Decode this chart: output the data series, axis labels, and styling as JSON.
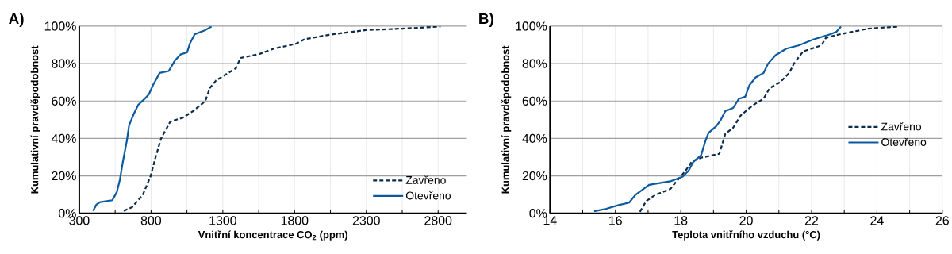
{
  "chart_data": [
    {
      "type": "line",
      "title": "A)",
      "xlabel": "Vnitřní koncentrace CO$_{2}$ (ppm)",
      "ylabel": "Kumulativní pravděpodobnost",
      "xlim": [
        300,
        3000
      ],
      "ylim": [
        0,
        100
      ],
      "xticks": [
        300,
        {
          "value": 550,
          "label": null
        },
        800,
        {
          "value": 1050,
          "label": null
        },
        1300,
        {
          "value": 1550,
          "label": null
        },
        1800,
        {
          "value": 2050,
          "label": null
        },
        2300,
        {
          "value": 2550,
          "label": null
        },
        2800
      ],
      "yticks": [
        {
          "value": 0,
          "label": "0%"
        },
        {
          "value": 20,
          "label": "20%"
        },
        {
          "value": 40,
          "label": "40%"
        },
        {
          "value": 60,
          "label": "60%"
        },
        {
          "value": 80,
          "label": "80%"
        },
        {
          "value": 100,
          "label": "100%"
        }
      ],
      "grid": true,
      "legend": "bottom right",
      "marker": "none",
      "series": [
        {
          "name": "Zavřeno",
          "color": "#0d2a4a",
          "line_style": "dashed",
          "x": [
            610,
            668,
            742,
            796,
            828,
            870,
            934,
            1019,
            1093,
            1178,
            1210,
            1253,
            1338,
            1391,
            1423,
            1551,
            1657,
            1806,
            1870,
            2040,
            2295,
            2551,
            2817
          ],
          "values": [
            1.3,
            3.3,
            9.8,
            19.6,
            29,
            40,
            49,
            51,
            54.6,
            60,
            67,
            71,
            75,
            77.5,
            83,
            85,
            88,
            90.5,
            93,
            95.4,
            97.9,
            98.7,
            99.8
          ]
        },
        {
          "name": "Otevřeno",
          "color": "#0b5aa0",
          "line_style": "solid",
          "x": [
            396,
            419,
            445,
            530,
            562,
            583,
            604,
            632,
            647,
            679,
            711,
            753,
            785,
            817,
            860,
            923,
            966,
            1008,
            1051,
            1072,
            1104,
            1178,
            1221
          ],
          "values": [
            1.3,
            4.6,
            6,
            7,
            11.4,
            18,
            27.7,
            39,
            47,
            53,
            58,
            61,
            63.6,
            69,
            75,
            76,
            81.6,
            85,
            86,
            91,
            95.6,
            97.9,
            99.8
          ]
        }
      ]
    },
    {
      "type": "line",
      "title": "B)",
      "xlabel": "Teplota vnitřního vzduchu (°C)",
      "ylabel": "Kumulativní pravděpodobnost",
      "xlim": [
        14,
        26
      ],
      "ylim": [
        0,
        100
      ],
      "xticks": [
        14,
        {
          "value": 15,
          "label": null
        },
        16,
        {
          "value": 17,
          "label": null
        },
        18,
        {
          "value": 19,
          "label": null
        },
        20,
        {
          "value": 21,
          "label": null
        },
        22,
        {
          "value": 23,
          "label": null
        },
        24,
        {
          "value": 25,
          "label": null
        },
        26
      ],
      "yticks": [
        {
          "value": 0,
          "label": "0%"
        },
        {
          "value": 20,
          "label": "20%"
        },
        {
          "value": 40,
          "label": "40%"
        },
        {
          "value": 60,
          "label": "60%"
        },
        {
          "value": 80,
          "label": "80%"
        },
        {
          "value": 100,
          "label": "100%"
        }
      ],
      "grid": true,
      "legend": "right",
      "marker": "none",
      "series": [
        {
          "name": "Zavřeno",
          "color": "#0d2a4a",
          "line_style": "dashed",
          "x": [
            16.75,
            16.94,
            17.22,
            17.68,
            17.87,
            18.15,
            18.34,
            18.62,
            19.18,
            19.36,
            19.6,
            19.83,
            20.1,
            20.29,
            20.53,
            20.72,
            21.04,
            21.32,
            21.46,
            21.74,
            22.3,
            22.44,
            22.9,
            23.74,
            24.68
          ],
          "values": [
            0.8,
            6.5,
            9.8,
            13,
            17.1,
            22.8,
            27.7,
            29.7,
            31.8,
            42.4,
            45.7,
            52.2,
            56.3,
            58.7,
            61.2,
            66.9,
            70.1,
            75,
            80,
            86.5,
            89.7,
            93.8,
            95.8,
            98.7,
            99.8
          ]
        },
        {
          "name": "Otevřeno",
          "color": "#0b5aa0",
          "line_style": "solid",
          "x": [
            15.35,
            15.72,
            16.1,
            16.42,
            16.61,
            17.03,
            17.68,
            18.06,
            18.24,
            18.38,
            18.62,
            18.76,
            18.85,
            19.08,
            19.22,
            19.36,
            19.6,
            19.78,
            19.97,
            20.1,
            20.29,
            20.53,
            20.67,
            20.9,
            21.23,
            21.6,
            22.07,
            22.53,
            22.76,
            22.9
          ],
          "values": [
            1.1,
            2.4,
            4.4,
            5.7,
            9.8,
            15.2,
            17.1,
            19.6,
            22.8,
            27.4,
            31,
            39,
            43,
            46.5,
            49.8,
            54.6,
            56.3,
            61.2,
            62.3,
            68.5,
            72.6,
            75,
            80,
            84.5,
            88,
            89.7,
            93,
            95.4,
            97,
            99.8
          ]
        }
      ]
    }
  ]
}
